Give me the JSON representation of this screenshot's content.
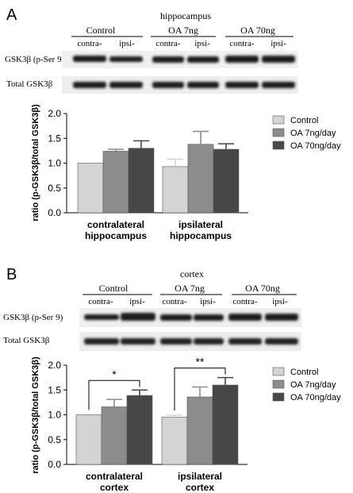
{
  "panels": [
    {
      "letter": "A",
      "region": "hippocampus",
      "groups": [
        "Control",
        "OA 7ng",
        "OA 70ng"
      ],
      "lane_labels": [
        "contra-",
        "ipsi-",
        "contra-",
        "ipsi-",
        "contra-",
        "ipsi-"
      ],
      "blot_labels": [
        "GSK3β (p-Ser 9)",
        "Total GSK3β"
      ],
      "chart_data": {
        "type": "bar",
        "ylabel": "ratio (p-GSK3β/total GSK3β)",
        "ylim": [
          0,
          2.0
        ],
        "yticks": [
          "0.0",
          "0.5",
          "1.0",
          "1.5",
          "2.0"
        ],
        "categories": [
          "contralateral\nhippocampus",
          "ipsilateral\nhippocampus"
        ],
        "series": [
          {
            "name": "Control",
            "color": "#d4d4d4",
            "values": [
              1.0,
              0.93
            ],
            "errors": [
              0.0,
              0.15
            ]
          },
          {
            "name": "OA 7ng/day",
            "color": "#8c8c8c",
            "values": [
              1.24,
              1.38
            ],
            "errors": [
              0.04,
              0.26
            ]
          },
          {
            "name": "OA 70ng/day",
            "color": "#474747",
            "values": [
              1.3,
              1.28
            ],
            "errors": [
              0.15,
              0.11
            ]
          }
        ],
        "significance": []
      }
    },
    {
      "letter": "B",
      "region": "cortex",
      "groups": [
        "Control",
        "OA 7ng",
        "OA 70ng"
      ],
      "lane_labels": [
        "contra-",
        "ipsi-",
        "contra-",
        "ipsi-",
        "contra-",
        "ipsi-"
      ],
      "blot_labels": [
        "GSK3β (p-Ser 9)",
        "Total GSK3β"
      ],
      "chart_data": {
        "type": "bar",
        "ylabel": "ratio (p-GSK3β/total GSK3β)",
        "ylim": [
          0,
          2.0
        ],
        "yticks": [
          "0.0",
          "0.5",
          "1.0",
          "1.5",
          "2.0"
        ],
        "categories": [
          "contralateral\ncortex",
          "ipsilateral\ncortex"
        ],
        "series": [
          {
            "name": "Control",
            "color": "#d4d4d4",
            "values": [
              1.0,
              0.95
            ],
            "errors": [
              0.0,
              0.04
            ]
          },
          {
            "name": "OA 7ng/day",
            "color": "#8c8c8c",
            "values": [
              1.16,
              1.36
            ],
            "errors": [
              0.15,
              0.2
            ]
          },
          {
            "name": "OA 70ng/day",
            "color": "#474747",
            "values": [
              1.39,
              1.6
            ],
            "errors": [
              0.11,
              0.15
            ]
          }
        ],
        "significance": [
          {
            "label": "*",
            "category": 0,
            "from_series": 0,
            "to_series": 2
          },
          {
            "label": "**",
            "category": 1,
            "from_series": 0,
            "to_series": 2
          }
        ]
      }
    }
  ]
}
